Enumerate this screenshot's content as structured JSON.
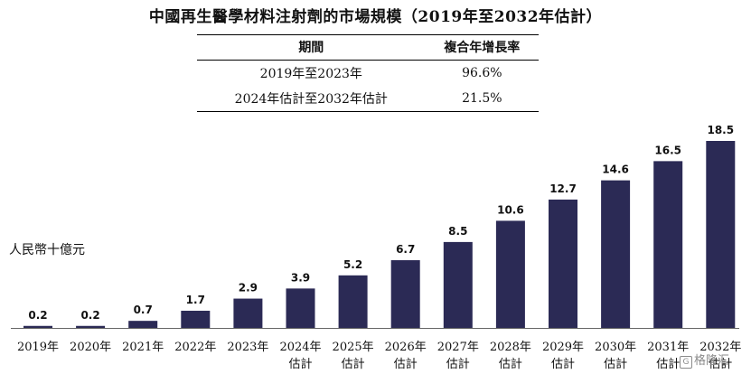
{
  "title": "中國再生醫學材料注射劑的市場規模（2019年至2032年估計）",
  "cagr_table": {
    "headers": [
      "期間",
      "複合年增長率"
    ],
    "rows": [
      [
        "2019年至2023年",
        "96.6%"
      ],
      [
        "2024年估計至2032年估計",
        "21.5%"
      ]
    ]
  },
  "watermark": "格隆汇",
  "chart_data": {
    "type": "bar",
    "ylabel": "人民幣十億元",
    "categories": [
      [
        "2019年"
      ],
      [
        "2020年"
      ],
      [
        "2021年"
      ],
      [
        "2022年"
      ],
      [
        "2023年"
      ],
      [
        "2024年",
        "估計"
      ],
      [
        "2025年",
        "估計"
      ],
      [
        "2026年",
        "估計"
      ],
      [
        "2027年",
        "估計"
      ],
      [
        "2028年",
        "估計"
      ],
      [
        "2029年",
        "估計"
      ],
      [
        "2030年",
        "估計"
      ],
      [
        "2031年",
        "估計"
      ],
      [
        "2032年",
        "估計"
      ]
    ],
    "values": [
      0.2,
      0.2,
      0.7,
      1.7,
      2.9,
      3.9,
      5.2,
      6.7,
      8.5,
      10.6,
      12.7,
      14.6,
      16.5,
      18.5
    ],
    "value_labels": [
      "0.2",
      "0.2",
      "0.7",
      "1.7",
      "2.9",
      "3.9",
      "5.2",
      "6.7",
      "8.5",
      "10.6",
      "12.7",
      "14.6",
      "16.5",
      "18.5"
    ],
    "bar_color": "#2b2a55",
    "ylim": [
      0,
      18.5
    ],
    "grid": false,
    "legend": "none"
  }
}
